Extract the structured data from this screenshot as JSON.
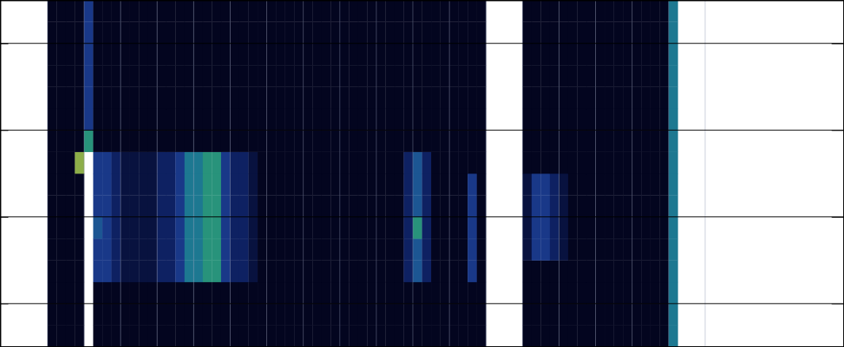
{
  "chart_data": {
    "type": "heatmap",
    "x": [
      0,
      0.25,
      0.5,
      0.75,
      1,
      1.25,
      1.5,
      1.75,
      2,
      2.25,
      2.5,
      2.75,
      3,
      3.25,
      3.5,
      3.75,
      4,
      4.25,
      4.5,
      4.75,
      5,
      5.25,
      5.5,
      5.75,
      6,
      6.25,
      6.5,
      6.75,
      7,
      7.25,
      7.5,
      7.75,
      8,
      8.25,
      8.5,
      8.75,
      9,
      9.25,
      9.5,
      9.75,
      10,
      10.25,
      10.5,
      10.75,
      11,
      11.25,
      11.5,
      11.75,
      12,
      12.25,
      12.5,
      12.75,
      13,
      13.25,
      13.5,
      13.75,
      14,
      14.25,
      14.5,
      14.75,
      15,
      15.25,
      15.5,
      15.75,
      16,
      16.25,
      16.5,
      16.75,
      17,
      17.25
    ],
    "y": [
      0.5,
      0.75,
      1,
      1.25,
      1.5,
      1.75,
      2,
      2.25,
      2.5,
      2.75,
      3,
      3.25,
      3.5,
      3.75,
      4,
      4.25,
      4.5
    ],
    "z": [
      [
        0,
        0,
        0,
        0,
        null,
        0,
        0,
        0,
        0,
        0,
        0,
        0,
        0,
        0,
        0,
        0,
        0,
        0,
        0,
        0,
        0,
        0,
        0,
        0,
        0,
        0,
        0,
        0,
        0,
        0,
        0,
        0,
        0,
        0,
        0,
        0,
        0,
        0,
        0,
        0,
        0,
        0,
        0,
        0,
        0,
        0,
        0,
        0,
        null,
        null,
        null,
        null,
        0,
        0,
        0,
        0,
        0,
        0,
        0,
        0,
        0,
        0,
        0,
        0,
        0,
        0,
        0,
        0,
        5
      ],
      [
        0,
        0,
        0,
        0,
        null,
        0,
        0,
        0,
        0,
        0,
        0,
        0,
        0,
        0,
        0,
        0,
        0,
        0,
        0,
        0,
        0,
        0,
        0,
        0,
        0,
        0,
        0,
        0,
        0,
        0,
        0,
        0,
        0,
        0,
        0,
        0,
        0,
        0,
        0,
        0,
        0,
        0,
        0,
        0,
        0,
        0,
        0,
        0,
        null,
        null,
        null,
        null,
        0,
        0,
        0,
        0,
        0,
        0,
        0,
        0,
        0,
        0,
        0,
        0,
        0,
        0,
        0,
        0,
        5
      ],
      [
        0,
        0,
        0,
        0,
        null,
        0,
        0,
        0,
        0,
        0,
        0,
        0,
        0,
        0,
        0,
        0,
        0,
        0,
        0,
        0,
        0,
        0,
        0,
        0,
        0,
        0,
        0,
        0,
        0,
        0,
        0,
        0,
        0,
        0,
        0,
        0,
        0,
        0,
        0,
        0,
        0,
        0,
        0,
        0,
        0,
        0,
        0,
        0,
        null,
        null,
        null,
        null,
        0,
        0,
        0,
        0,
        0,
        0,
        0,
        0,
        0,
        0,
        0,
        0,
        0,
        0,
        0,
        0,
        5
      ],
      [
        0,
        0,
        0,
        0,
        null,
        3,
        3,
        2,
        1,
        1,
        1,
        1,
        2,
        2,
        3,
        5,
        5,
        6,
        6,
        3,
        2,
        2,
        1,
        0,
        0,
        0,
        0,
        0,
        0,
        0,
        0,
        0,
        0,
        0,
        0,
        0,
        0,
        0,
        0,
        2,
        4,
        2,
        0,
        0,
        0,
        0,
        3,
        0,
        null,
        null,
        null,
        null,
        0,
        0,
        0,
        0,
        0,
        0,
        0,
        0,
        0,
        0,
        0,
        0,
        0,
        0,
        0,
        0,
        5
      ],
      [
        0,
        0,
        0,
        0,
        null,
        3,
        3,
        2,
        1,
        1,
        1,
        1,
        2,
        2,
        3,
        5,
        5,
        6,
        6,
        3,
        2,
        2,
        1,
        0,
        0,
        0,
        0,
        0,
        0,
        0,
        0,
        0,
        0,
        0,
        0,
        0,
        0,
        0,
        0,
        2,
        4,
        2,
        0,
        0,
        0,
        0,
        3,
        0,
        null,
        null,
        null,
        null,
        1,
        3,
        3,
        2,
        1,
        0,
        0,
        0,
        0,
        0,
        0,
        0,
        0,
        0,
        0,
        0,
        5
      ],
      [
        0,
        0,
        0,
        0,
        null,
        4,
        3,
        2,
        1,
        1,
        1,
        1,
        2,
        2,
        3,
        5,
        5,
        6,
        6,
        3,
        2,
        2,
        1,
        0,
        0,
        0,
        0,
        0,
        0,
        0,
        0,
        0,
        0,
        0,
        0,
        0,
        0,
        0,
        0,
        2,
        6,
        2,
        0,
        0,
        0,
        0,
        3,
        0,
        null,
        null,
        null,
        null,
        1,
        3,
        3,
        2,
        1,
        0,
        0,
        0,
        0,
        0,
        0,
        0,
        0,
        0,
        0,
        0,
        5
      ],
      [
        0,
        0,
        0,
        0,
        null,
        3,
        3,
        2,
        1,
        1,
        1,
        1,
        2,
        2,
        3,
        5,
        5,
        6,
        6,
        3,
        2,
        2,
        1,
        0,
        0,
        0,
        0,
        0,
        0,
        0,
        0,
        0,
        0,
        0,
        0,
        0,
        0,
        0,
        0,
        2,
        4,
        2,
        0,
        0,
        0,
        0,
        3,
        0,
        null,
        null,
        null,
        null,
        1,
        3,
        3,
        2,
        1,
        0,
        0,
        0,
        0,
        0,
        0,
        0,
        0,
        0,
        0,
        0,
        5
      ],
      [
        0,
        0,
        0,
        0,
        null,
        3,
        3,
        2,
        1,
        1,
        1,
        1,
        2,
        2,
        3,
        5,
        5,
        6,
        6,
        3,
        2,
        2,
        1,
        0,
        0,
        0,
        0,
        0,
        0,
        0,
        0,
        0,
        0,
        0,
        0,
        0,
        0,
        0,
        0,
        2,
        4,
        2,
        0,
        0,
        0,
        0,
        3,
        0,
        null,
        null,
        null,
        null,
        1,
        3,
        3,
        2,
        1,
        0,
        0,
        0,
        0,
        0,
        0,
        0,
        0,
        0,
        0,
        0,
        5
      ],
      [
        0,
        0,
        0,
        8,
        null,
        3,
        3,
        2,
        1,
        1,
        1,
        1,
        2,
        2,
        3,
        5,
        5,
        6,
        6,
        3,
        2,
        2,
        1,
        0,
        0,
        0,
        0,
        0,
        0,
        0,
        0,
        0,
        0,
        0,
        0,
        0,
        0,
        0,
        0,
        2,
        4,
        2,
        0,
        0,
        0,
        0,
        0,
        0,
        null,
        null,
        null,
        null,
        0,
        0,
        0,
        0,
        0,
        0,
        0,
        0,
        0,
        0,
        0,
        0,
        0,
        0,
        0,
        0,
        5
      ],
      [
        0,
        0,
        0,
        0,
        6,
        0,
        0,
        0,
        0,
        0,
        0,
        0,
        0,
        0,
        0,
        0,
        0,
        0,
        0,
        0,
        0,
        0,
        0,
        0,
        0,
        0,
        0,
        0,
        0,
        0,
        0,
        0,
        0,
        0,
        0,
        0,
        0,
        0,
        0,
        0,
        0,
        0,
        0,
        0,
        0,
        0,
        0,
        0,
        null,
        null,
        null,
        null,
        0,
        0,
        0,
        0,
        0,
        0,
        0,
        0,
        0,
        0,
        0,
        0,
        0,
        0,
        0,
        0,
        5
      ],
      [
        0,
        0,
        0,
        0,
        3,
        0,
        0,
        0,
        0,
        0,
        0,
        0,
        0,
        0,
        0,
        0,
        0,
        0,
        0,
        0,
        0,
        0,
        0,
        0,
        0,
        0,
        0,
        0,
        0,
        0,
        0,
        0,
        0,
        0,
        0,
        0,
        0,
        0,
        0,
        0,
        0,
        0,
        0,
        0,
        0,
        0,
        0,
        0,
        null,
        null,
        null,
        null,
        0,
        0,
        0,
        0,
        0,
        0,
        0,
        0,
        0,
        0,
        0,
        0,
        0,
        0,
        0,
        0,
        5
      ],
      [
        0,
        0,
        0,
        0,
        3,
        0,
        0,
        0,
        0,
        0,
        0,
        0,
        0,
        0,
        0,
        0,
        0,
        0,
        0,
        0,
        0,
        0,
        0,
        0,
        0,
        0,
        0,
        0,
        0,
        0,
        0,
        0,
        0,
        0,
        0,
        0,
        0,
        0,
        0,
        0,
        0,
        0,
        0,
        0,
        0,
        0,
        0,
        0,
        null,
        null,
        null,
        null,
        0,
        0,
        0,
        0,
        0,
        0,
        0,
        0,
        0,
        0,
        0,
        0,
        0,
        0,
        0,
        0,
        5
      ],
      [
        0,
        0,
        0,
        0,
        3,
        0,
        0,
        0,
        0,
        0,
        0,
        0,
        0,
        0,
        0,
        0,
        0,
        0,
        0,
        0,
        0,
        0,
        0,
        0,
        0,
        0,
        0,
        0,
        0,
        0,
        0,
        0,
        0,
        0,
        0,
        0,
        0,
        0,
        0,
        0,
        0,
        0,
        0,
        0,
        0,
        0,
        0,
        0,
        null,
        null,
        null,
        null,
        0,
        0,
        0,
        0,
        0,
        0,
        0,
        0,
        0,
        0,
        0,
        0,
        0,
        0,
        0,
        0,
        5
      ],
      [
        0,
        0,
        0,
        0,
        3,
        0,
        0,
        0,
        0,
        0,
        0,
        0,
        0,
        0,
        0,
        0,
        0,
        0,
        0,
        0,
        0,
        0,
        0,
        0,
        0,
        0,
        0,
        0,
        0,
        0,
        0,
        0,
        0,
        0,
        0,
        0,
        0,
        0,
        0,
        0,
        0,
        0,
        0,
        0,
        0,
        0,
        0,
        0,
        null,
        null,
        null,
        null,
        0,
        0,
        0,
        0,
        0,
        0,
        0,
        0,
        0,
        0,
        0,
        0,
        0,
        0,
        0,
        0,
        5
      ],
      [
        0,
        0,
        0,
        0,
        3,
        0,
        0,
        0,
        0,
        0,
        0,
        0,
        0,
        0,
        0,
        0,
        0,
        0,
        0,
        0,
        0,
        0,
        0,
        0,
        0,
        0,
        0,
        0,
        0,
        0,
        0,
        0,
        0,
        0,
        0,
        0,
        0,
        0,
        0,
        0,
        0,
        0,
        0,
        0,
        0,
        0,
        0,
        0,
        null,
        null,
        null,
        null,
        0,
        0,
        0,
        0,
        0,
        0,
        0,
        0,
        0,
        0,
        0,
        0,
        0,
        0,
        0,
        0,
        5
      ],
      [
        0,
        0,
        0,
        0,
        3,
        0,
        0,
        0,
        0,
        0,
        0,
        0,
        0,
        0,
        0,
        0,
        0,
        0,
        0,
        0,
        0,
        0,
        0,
        0,
        0,
        0,
        0,
        0,
        0,
        0,
        0,
        0,
        0,
        0,
        0,
        0,
        0,
        0,
        0,
        0,
        0,
        0,
        0,
        0,
        0,
        0,
        0,
        0,
        null,
        null,
        null,
        null,
        0,
        0,
        0,
        0,
        0,
        0,
        0,
        0,
        0,
        0,
        0,
        0,
        0,
        0,
        0,
        0,
        5
      ]
    ],
    "zlim": [
      0,
      10
    ],
    "xlim": [
      -1.3,
      21.8
    ],
    "ylim": [
      0.5,
      4.5
    ],
    "xticks": [
      0,
      1,
      2,
      3,
      4,
      5,
      6,
      7,
      8,
      9,
      10,
      11,
      12,
      13,
      14,
      15,
      16,
      17,
      18
    ],
    "yticks": [
      1,
      2,
      3,
      4
    ],
    "grid": true,
    "tick_labels": false
  }
}
